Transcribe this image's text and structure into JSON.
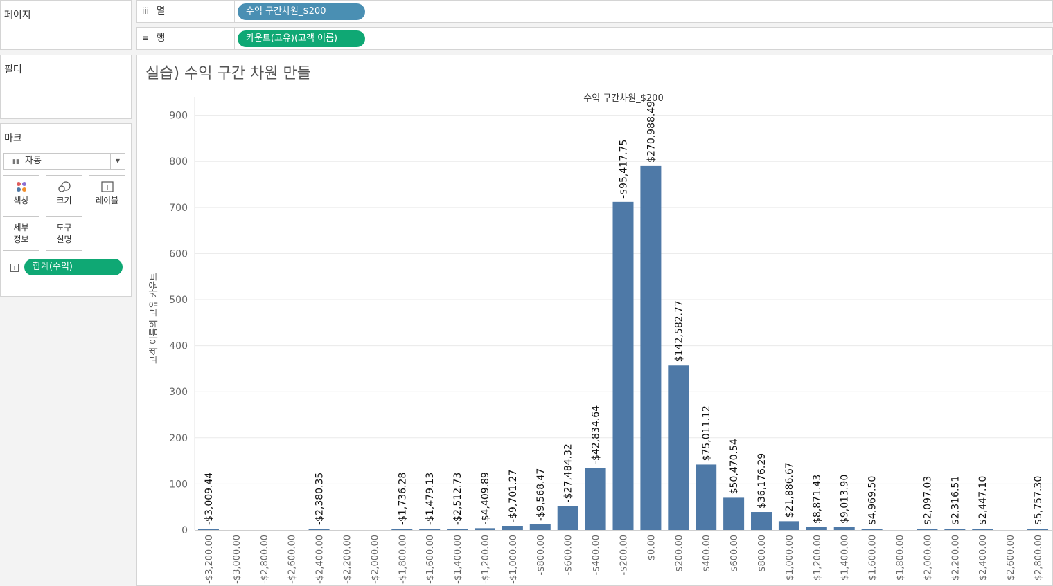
{
  "pages_shelf": {
    "title": "페이지"
  },
  "columns_shelf": {
    "label": "열",
    "icon": "columns-icon",
    "pill": "수익 구간차원_$200"
  },
  "rows_shelf": {
    "label": "행",
    "icon": "rows-icon",
    "pill": "카운트(고유)(고객 이름)"
  },
  "filters_shelf": {
    "title": "필터"
  },
  "marks_card": {
    "title": "마크",
    "mark_type": "자동",
    "buttons": {
      "color": "색상",
      "size": "크기",
      "label": "레이블",
      "detail_1": "세부",
      "detail_2": "정보",
      "tooltip_1": "도구",
      "tooltip_2": "설명"
    },
    "label_pill": "합계(수익)"
  },
  "sheet": {
    "title": "실습) 수익 구간 차원 만들"
  },
  "colors": {
    "bar": "#4e79a7",
    "pill_blue": "#4a8fb3",
    "pill_green": "#0fa874"
  },
  "chart_data": {
    "type": "bar",
    "title": "수익 구간차원_$200",
    "xlabel": "",
    "ylabel": "고객 이름의 고유 카운트",
    "ylim": [
      0,
      940
    ],
    "yticks": [
      0,
      100,
      200,
      300,
      400,
      500,
      600,
      700,
      800,
      900
    ],
    "categories": [
      "-$3,200.00",
      "-$3,000.00",
      "-$2,800.00",
      "-$2,600.00",
      "-$2,400.00",
      "-$2,200.00",
      "-$2,000.00",
      "-$1,800.00",
      "-$1,600.00",
      "-$1,400.00",
      "-$1,200.00",
      "-$1,000.00",
      "-$800.00",
      "-$600.00",
      "-$400.00",
      "-$200.00",
      "$0.00",
      "$200.00",
      "$400.00",
      "$600.00",
      "$800.00",
      "$1,000.00",
      "$1,200.00",
      "$1,400.00",
      "$1,600.00",
      "$1,800.00",
      "$2,000.00",
      "$2,200.00",
      "$2,400.00",
      "$2,600.00",
      "$2,800.00"
    ],
    "values": [
      1,
      null,
      null,
      null,
      1,
      null,
      null,
      1,
      1,
      1,
      4,
      9,
      12,
      52,
      135,
      712,
      790,
      357,
      142,
      70,
      39,
      19,
      6,
      6,
      3,
      null,
      1,
      1,
      1,
      null,
      2
    ],
    "labels": [
      "-$3,009.44",
      "",
      "",
      "",
      "-$2,380.35",
      "",
      "",
      "-$1,736.28",
      "-$1,479.13",
      "-$2,512.73",
      "-$4,409.89",
      "-$9,701.27",
      "-$9,568.47",
      "-$27,484.32",
      "-$42,834.64",
      "-$95,417.75",
      "$270,988.49",
      "$142,582.77",
      "$75,011.12",
      "$50,470.54",
      "$36,176.29",
      "$21,886.67",
      "$8,871.43",
      "$9,013.90",
      "$4,969.50",
      "",
      "$2,097.03",
      "$2,316.51",
      "$2,447.10",
      "",
      "$5,757.30"
    ],
    "grid": true,
    "legend": "none"
  }
}
